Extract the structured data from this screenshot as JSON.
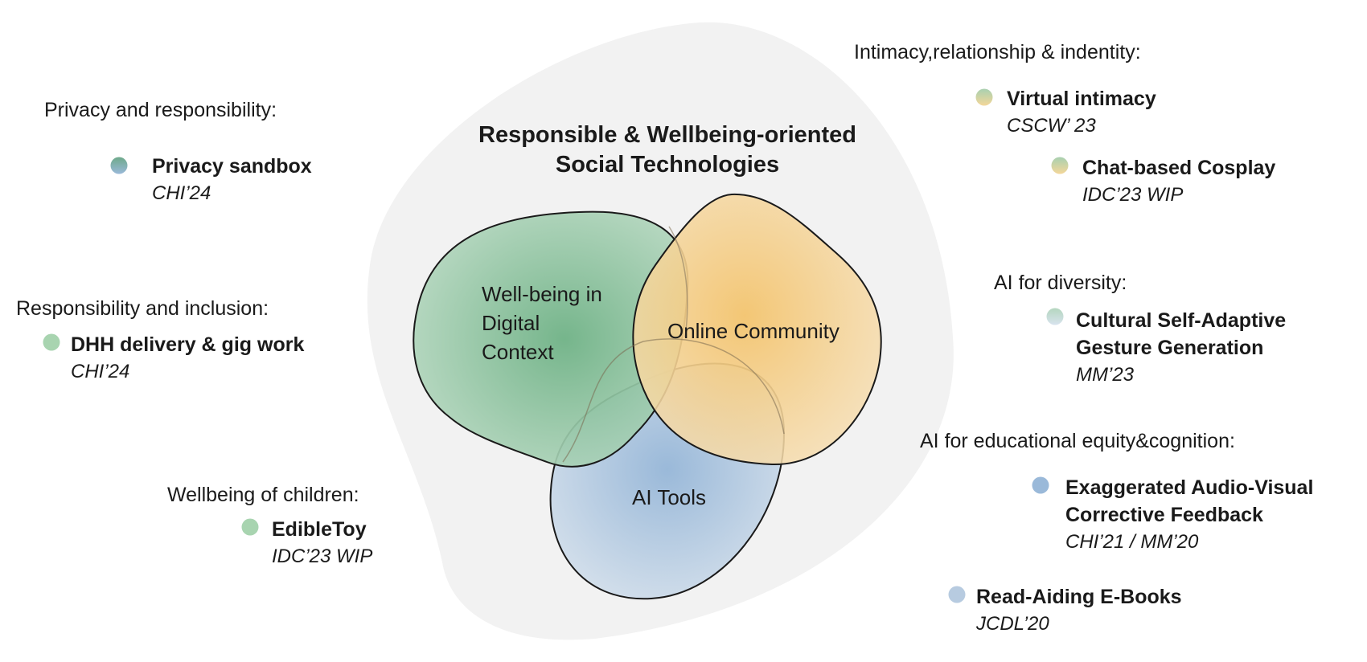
{
  "title_line1": "Responsible & Wellbeing-oriented",
  "title_line2": "Social Technologies",
  "blobs": {
    "wellbeing": [
      "Well-being in",
      "Digital",
      "Context"
    ],
    "community": "Online Community",
    "ai_tools": "AI Tools"
  },
  "categories": {
    "privacy": "Privacy and responsibility:",
    "inclusion": "Responsibility and inclusion:",
    "children": "Wellbeing of children:",
    "intimacy": "Intimacy,relationship & indentity:",
    "diversity": "AI  for diversity:",
    "education": "AI  for educational equity&cognition:"
  },
  "items": {
    "privacy_sandbox": {
      "title": "Privacy sandbox",
      "venue": "CHI’24"
    },
    "dhh": {
      "title": "DHH  delivery & gig work",
      "venue": "CHI’24"
    },
    "edibletoy": {
      "title": "EdibleToy",
      "venue": "IDC’23 WIP"
    },
    "virtual_intimacy": {
      "title": "Virtual intimacy",
      "venue": "CSCW’ 23"
    },
    "cosplay": {
      "title": "Chat-based Cosplay",
      "venue": "IDC’23 WIP"
    },
    "gesture": {
      "title_1": "Cultural Self-Adaptive",
      "title_2": "Gesture Generation",
      "venue": "MM’23"
    },
    "audiovisual": {
      "title_1": "Exaggerated Audio-Visual",
      "title_2": "Corrective Feedback",
      "venue": "CHI’21  / MM’20"
    },
    "ebooks": {
      "title": "Read-Aiding E-Books",
      "venue": "JCDL’20"
    }
  },
  "colors": {
    "background_blob": "#f2f2f2",
    "green": "#6fb286",
    "orange": "#f3c46e",
    "blue": "#9ab9d9"
  }
}
